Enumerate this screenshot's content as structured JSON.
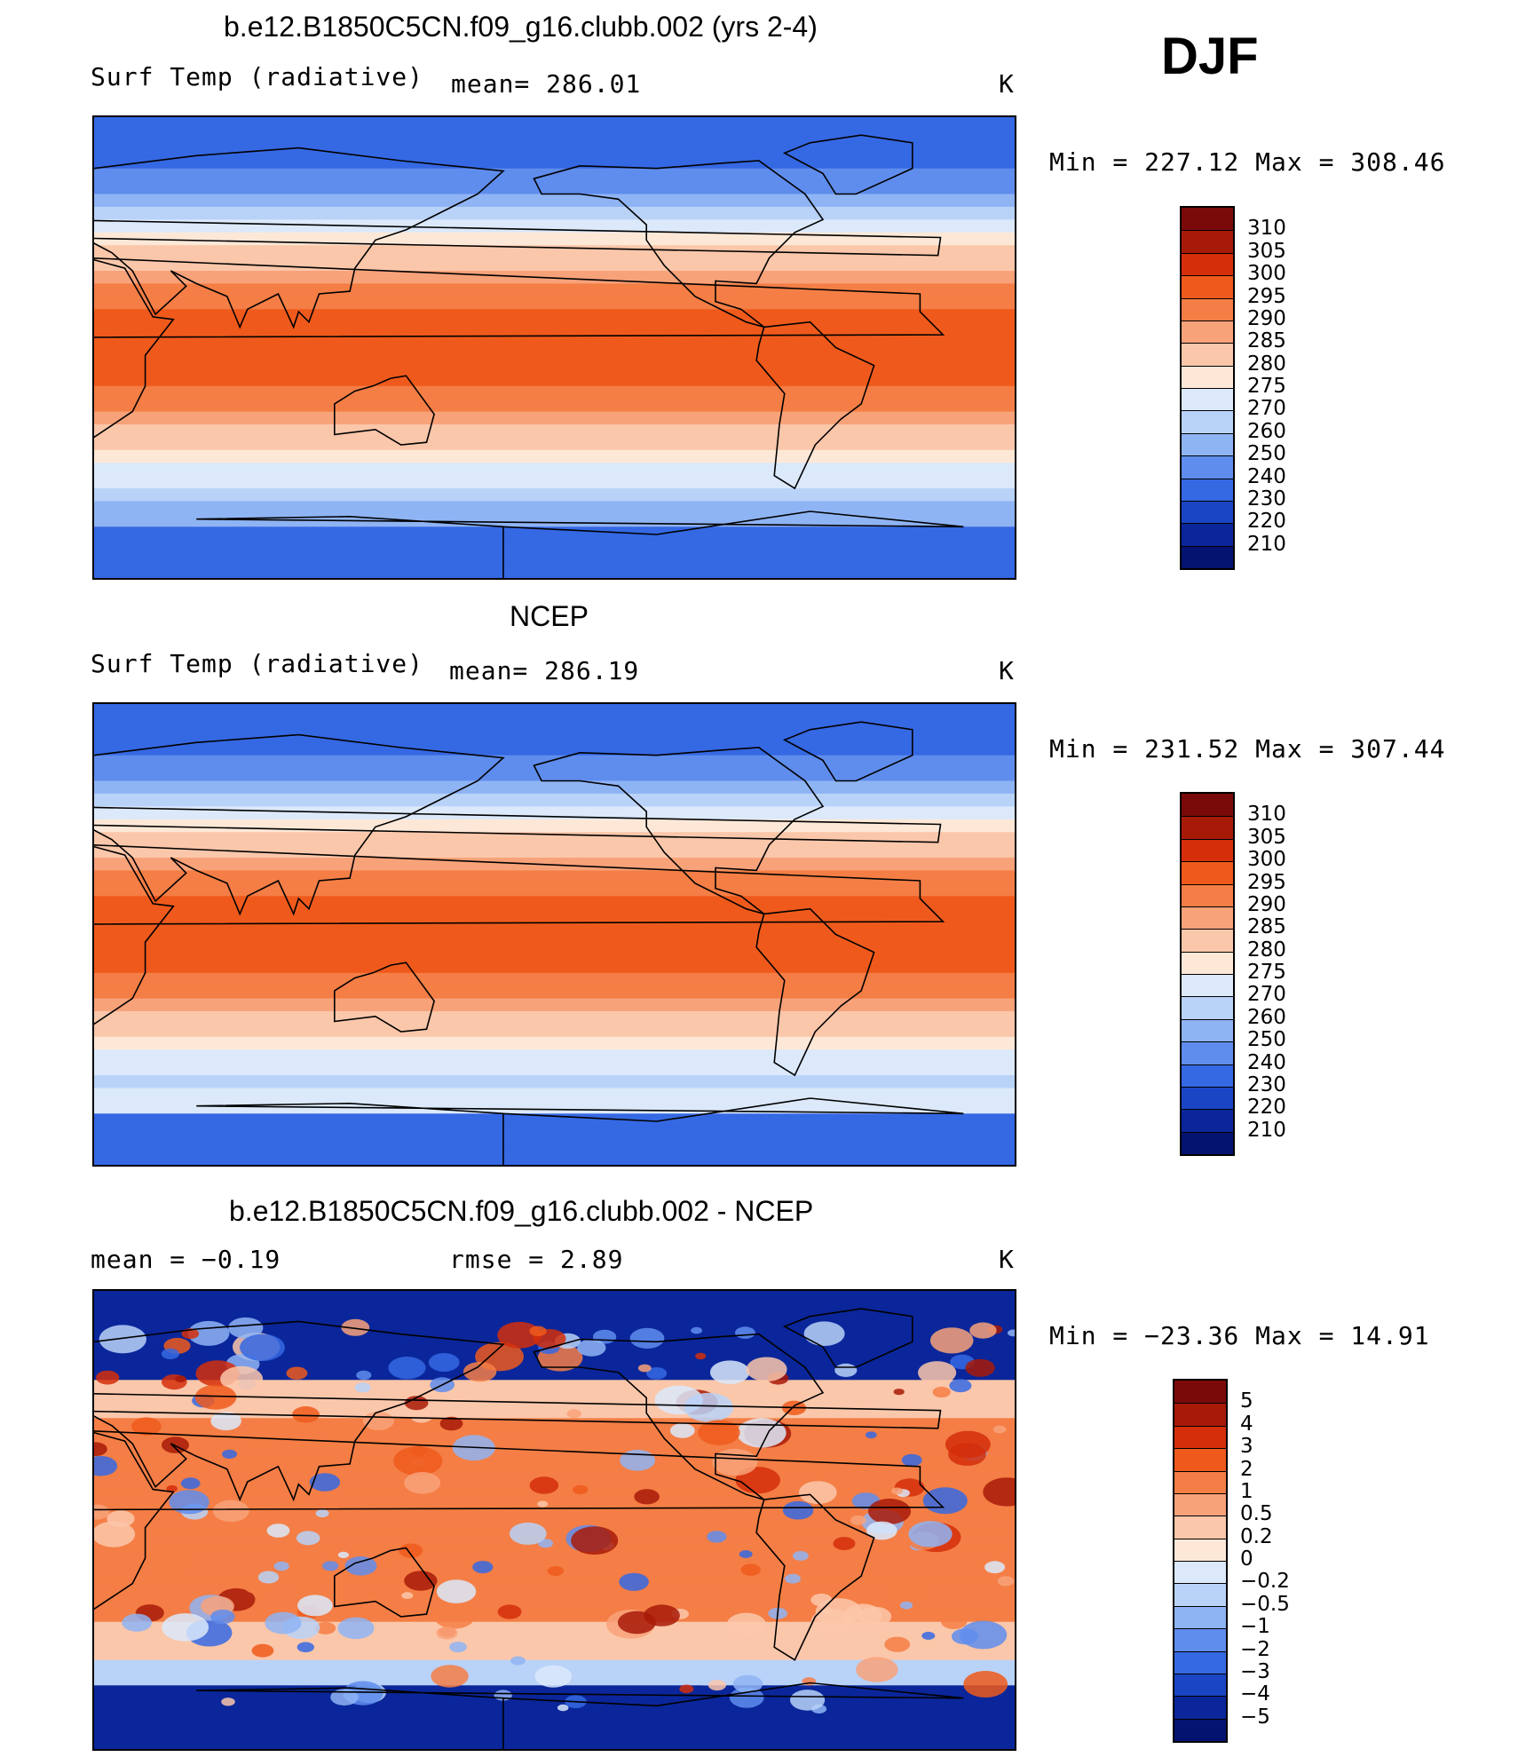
{
  "season": "DJF",
  "units": "K",
  "panels": [
    {
      "title": "b.e12.B1850C5CN.f09_g16.clubb.002 (yrs 2-4)",
      "field": "Surf Temp (radiative)",
      "stat_text": "mean= 286.01",
      "units": "K",
      "range_text": "Min  =  227.12  Max  =  308.46"
    },
    {
      "title": "NCEP",
      "field": "Surf Temp (radiative)",
      "stat_text": "mean= 286.19",
      "units": "K",
      "range_text": "Min  =  231.52  Max  =  307.44"
    },
    {
      "title": "b.e12.B1850C5CN.f09_g16.clubb.002 - NCEP",
      "field": "mean  =    −0.19",
      "stat_text": "rmse  =     2.89",
      "units": "K",
      "range_text": "Min  =  −23.36  Max  =    14.91"
    }
  ],
  "chart_data": [
    {
      "type": "heatmap",
      "title": "b.e12.B1850C5CN.f09_g16.clubb.002 (yrs 2-4)",
      "variable": "Surf Temp (radiative)",
      "units": "K",
      "mean": 286.01,
      "min": 227.12,
      "max": 308.46,
      "projection": "cylindrical equidistant, Pacific-centered",
      "colorbar_levels": [
        "310",
        "305",
        "300",
        "295",
        "290",
        "285",
        "280",
        "275",
        "270",
        "260",
        "250",
        "240",
        "230",
        "220",
        "210"
      ],
      "colorbar_colors": [
        "#7a0a0a",
        "#a81a08",
        "#d42e0b",
        "#ef5a1c",
        "#f47e45",
        "#f8a27a",
        "#fbc7aa",
        "#fde8d8",
        "#dbe9fb",
        "#b9d2f8",
        "#8fb4f4",
        "#5f8ded",
        "#3568e3",
        "#1a45c4",
        "#0a269a",
        "#041370"
      ]
    },
    {
      "type": "heatmap",
      "title": "NCEP",
      "variable": "Surf Temp (radiative)",
      "units": "K",
      "mean": 286.19,
      "min": 231.52,
      "max": 307.44,
      "projection": "cylindrical equidistant, Pacific-centered",
      "colorbar_levels": [
        "310",
        "305",
        "300",
        "295",
        "290",
        "285",
        "280",
        "275",
        "270",
        "260",
        "250",
        "240",
        "230",
        "220",
        "210"
      ],
      "colorbar_colors": [
        "#7a0a0a",
        "#a81a08",
        "#d42e0b",
        "#ef5a1c",
        "#f47e45",
        "#f8a27a",
        "#fbc7aa",
        "#fde8d8",
        "#dbe9fb",
        "#b9d2f8",
        "#8fb4f4",
        "#5f8ded",
        "#3568e3",
        "#1a45c4",
        "#0a269a",
        "#041370"
      ]
    },
    {
      "type": "heatmap",
      "title": "b.e12.B1850C5CN.f09_g16.clubb.002 - NCEP",
      "variable": "Surf Temp (radiative)",
      "units": "K",
      "mean": -0.19,
      "rmse": 2.89,
      "min": -23.36,
      "max": 14.91,
      "projection": "cylindrical equidistant, Pacific-centered",
      "colorbar_levels": [
        "5",
        "4",
        "3",
        "2",
        "1",
        "0.5",
        "0.2",
        "0",
        "−0.2",
        "−0.5",
        "−1",
        "−2",
        "−3",
        "−4",
        "−5"
      ],
      "colorbar_colors": [
        "#7a0a0a",
        "#a81a08",
        "#d42e0b",
        "#ef5a1c",
        "#f47e45",
        "#f8a27a",
        "#fbc7aa",
        "#fde8d8",
        "#dbe9fb",
        "#b9d2f8",
        "#8fb4f4",
        "#5f8ded",
        "#3568e3",
        "#1a45c4",
        "#0a269a",
        "#041370"
      ]
    }
  ]
}
